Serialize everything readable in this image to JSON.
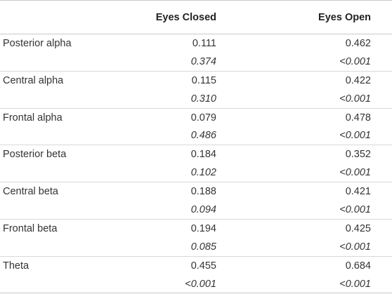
{
  "table": {
    "headers": {
      "label": "",
      "eyes_closed": "Eyes Closed",
      "eyes_open": "Eyes Open"
    },
    "rows": [
      {
        "label": "Posterior alpha",
        "eyes_closed": "0.111",
        "eyes_open": "0.462",
        "p_closed": "0.374",
        "p_open": "<0.001"
      },
      {
        "label": "Central alpha",
        "eyes_closed": "0.115",
        "eyes_open": "0.422",
        "p_closed": "0.310",
        "p_open": "<0.001"
      },
      {
        "label": "Frontal alpha",
        "eyes_closed": "0.079",
        "eyes_open": "0.478",
        "p_closed": "0.486",
        "p_open": "<0.001"
      },
      {
        "label": "Posterior beta",
        "eyes_closed": "0.184",
        "eyes_open": "0.352",
        "p_closed": "0.102",
        "p_open": "<0.001"
      },
      {
        "label": "Central beta",
        "eyes_closed": "0.188",
        "eyes_open": "0.421",
        "p_closed": "0.094",
        "p_open": "<0.001"
      },
      {
        "label": "Frontal beta",
        "eyes_closed": "0.194",
        "eyes_open": "0.425",
        "p_closed": "0.085",
        "p_open": "<0.001"
      },
      {
        "label": "Theta",
        "eyes_closed": "0.455",
        "eyes_open": "0.684",
        "p_closed": "<0.001",
        "p_open": "<0.001"
      }
    ]
  }
}
